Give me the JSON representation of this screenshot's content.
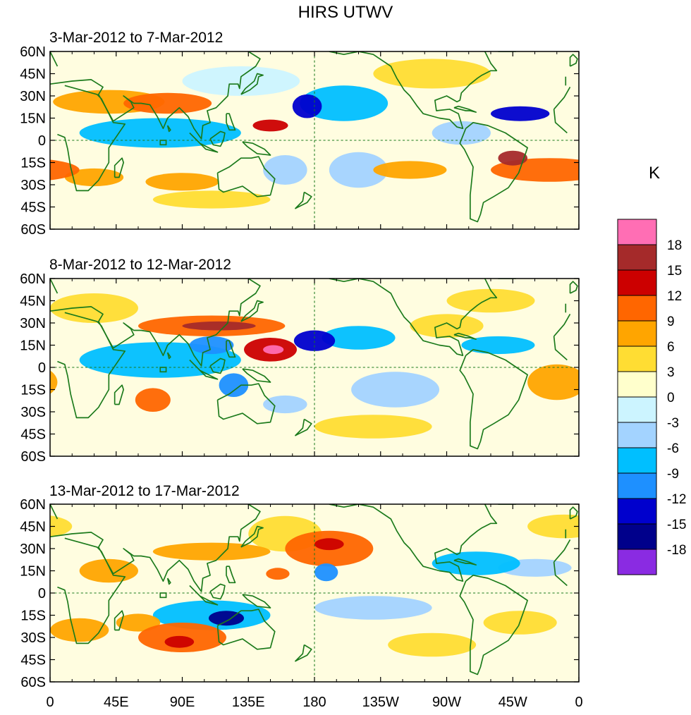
{
  "title": "HIRS UTWV",
  "unit": "K",
  "lat_labels": [
    "60N",
    "45N",
    "30N",
    "15N",
    "0",
    "15S",
    "30S",
    "45S",
    "60S"
  ],
  "lon_labels": [
    "0",
    "45E",
    "90E",
    "135E",
    "180",
    "135W",
    "90W",
    "45W",
    "0"
  ],
  "panels": [
    {
      "id": "p1",
      "label": "3-Mar-2012 to 7-Mar-2012",
      "blobs": [
        {
          "lon": 40,
          "lat": 26,
          "rlon": 38,
          "rlat": 8,
          "level": 5
        },
        {
          "lon": 80,
          "lat": 25,
          "rlon": 30,
          "rlat": 7,
          "level": 6
        },
        {
          "lon": 75,
          "lat": 5,
          "rlon": 55,
          "rlat": 10,
          "level": -5
        },
        {
          "lon": 150,
          "lat": 10,
          "rlon": 12,
          "rlat": 4,
          "level": 8
        },
        {
          "lon": 175,
          "lat": 23,
          "rlon": 10,
          "rlat": 8,
          "level": -7
        },
        {
          "lon": 200,
          "lat": 25,
          "rlon": 30,
          "rlat": 12,
          "level": -5
        },
        {
          "lon": 320,
          "lat": 18,
          "rlon": 20,
          "rlat": 5,
          "level": -7
        },
        {
          "lon": 340,
          "lat": -20,
          "rlon": 40,
          "rlat": 8,
          "level": 6
        },
        {
          "lon": 315,
          "lat": -12,
          "rlon": 10,
          "rlat": 5,
          "level": 9
        },
        {
          "lon": 30,
          "lat": -25,
          "rlon": 20,
          "rlat": 6,
          "level": 5
        },
        {
          "lon": 90,
          "lat": -28,
          "rlon": 25,
          "rlat": 6,
          "level": 4
        },
        {
          "lon": 245,
          "lat": -20,
          "rlon": 25,
          "rlat": 6,
          "level": 5
        },
        {
          "lon": 160,
          "lat": -20,
          "rlon": 15,
          "rlat": 10,
          "level": -4
        },
        {
          "lon": 210,
          "lat": -20,
          "rlon": 20,
          "rlat": 12,
          "level": -3
        },
        {
          "lon": 130,
          "lat": 40,
          "rlon": 40,
          "rlat": 10,
          "level": -2
        },
        {
          "lon": 260,
          "lat": 45,
          "rlon": 40,
          "rlat": 10,
          "level": 2
        },
        {
          "lon": 280,
          "lat": 5,
          "rlon": 20,
          "rlat": 8,
          "level": -3
        },
        {
          "lon": 110,
          "lat": -40,
          "rlon": 40,
          "rlat": 6,
          "level": 2
        }
      ]
    },
    {
      "id": "p2",
      "label": "8-Mar-2012 to 12-Mar-2012",
      "blobs": [
        {
          "lon": 110,
          "lat": 28,
          "rlon": 50,
          "rlat": 7,
          "level": 7
        },
        {
          "lon": 115,
          "lat": 28,
          "rlon": 25,
          "rlat": 3,
          "level": 10
        },
        {
          "lon": 150,
          "lat": 12,
          "rlon": 18,
          "rlat": 8,
          "level": 8
        },
        {
          "lon": 152,
          "lat": 12,
          "rlon": 7,
          "rlat": 3,
          "level": 11
        },
        {
          "lon": 75,
          "lat": 5,
          "rlon": 55,
          "rlat": 12,
          "level": -5
        },
        {
          "lon": 110,
          "lat": 15,
          "rlon": 15,
          "rlat": 6,
          "level": -6
        },
        {
          "lon": 180,
          "lat": 18,
          "rlon": 14,
          "rlat": 7,
          "level": -7
        },
        {
          "lon": 210,
          "lat": 20,
          "rlon": 25,
          "rlat": 8,
          "level": -5
        },
        {
          "lon": 305,
          "lat": 15,
          "rlon": 25,
          "rlat": 6,
          "level": -5
        },
        {
          "lon": 70,
          "lat": -22,
          "rlon": 12,
          "rlat": 8,
          "level": 6
        },
        {
          "lon": 125,
          "lat": -12,
          "rlon": 10,
          "rlat": 8,
          "level": -6
        },
        {
          "lon": 160,
          "lat": -25,
          "rlon": 15,
          "rlat": 6,
          "level": -4
        },
        {
          "lon": 345,
          "lat": -10,
          "rlon": 20,
          "rlat": 12,
          "level": 4
        },
        {
          "lon": 270,
          "lat": 28,
          "rlon": 25,
          "rlat": 8,
          "level": 3
        },
        {
          "lon": 300,
          "lat": 45,
          "rlon": 30,
          "rlat": 8,
          "level": 3
        },
        {
          "lon": 235,
          "lat": -15,
          "rlon": 30,
          "rlat": 12,
          "level": -3
        },
        {
          "lon": 220,
          "lat": -40,
          "rlon": 40,
          "rlat": 8,
          "level": 2
        },
        {
          "lon": 30,
          "lat": 40,
          "rlon": 30,
          "rlat": 10,
          "level": 2
        }
      ]
    },
    {
      "id": "p3",
      "label": "13-Mar-2012 to 17-Mar-2012",
      "blobs": [
        {
          "lon": 190,
          "lat": 30,
          "rlon": 30,
          "rlat": 12,
          "level": 6
        },
        {
          "lon": 190,
          "lat": 33,
          "rlon": 10,
          "rlat": 4,
          "level": 8
        },
        {
          "lon": 160,
          "lat": 40,
          "rlon": 25,
          "rlat": 12,
          "level": 3
        },
        {
          "lon": 188,
          "lat": 14,
          "rlon": 8,
          "rlat": 6,
          "level": -6
        },
        {
          "lon": 155,
          "lat": 13,
          "rlon": 8,
          "rlat": 4,
          "level": 7
        },
        {
          "lon": 110,
          "lat": 28,
          "rlon": 40,
          "rlat": 6,
          "level": 5
        },
        {
          "lon": 110,
          "lat": -15,
          "rlon": 40,
          "rlat": 10,
          "level": -5
        },
        {
          "lon": 120,
          "lat": -17,
          "rlon": 12,
          "rlat": 5,
          "level": -8
        },
        {
          "lon": 90,
          "lat": -30,
          "rlon": 30,
          "rlat": 10,
          "level": 6
        },
        {
          "lon": 88,
          "lat": -33,
          "rlon": 10,
          "rlat": 4,
          "level": 8
        },
        {
          "lon": 60,
          "lat": -20,
          "rlon": 15,
          "rlat": 6,
          "level": 5
        },
        {
          "lon": 20,
          "lat": -25,
          "rlon": 20,
          "rlat": 8,
          "level": 5
        },
        {
          "lon": 290,
          "lat": 20,
          "rlon": 30,
          "rlat": 8,
          "level": -5
        },
        {
          "lon": 330,
          "lat": 17,
          "rlon": 25,
          "rlat": 6,
          "level": -4
        },
        {
          "lon": 220,
          "lat": -10,
          "rlon": 40,
          "rlat": 8,
          "level": -3
        },
        {
          "lon": 260,
          "lat": -35,
          "rlon": 30,
          "rlat": 8,
          "level": 3
        },
        {
          "lon": 320,
          "lat": -20,
          "rlon": 25,
          "rlat": 8,
          "level": 3
        },
        {
          "lon": 40,
          "lat": 15,
          "rlon": 20,
          "rlat": 8,
          "level": 4
        },
        {
          "lon": 350,
          "lat": 45,
          "rlon": 25,
          "rlat": 8,
          "level": 3
        }
      ]
    }
  ],
  "colorbar": {
    "labels": [
      "18",
      "15",
      "12",
      "9",
      "6",
      "3",
      "0",
      "-3",
      "-6",
      "-9",
      "-12",
      "-15",
      "-18"
    ],
    "colors": [
      "#ff6eb4",
      "#a52a2a",
      "#cc0000",
      "#ff6600",
      "#ffa500",
      "#ffdd33",
      "#ffffcc",
      "#ccf4ff",
      "#a3d3ff",
      "#00bfff",
      "#1e90ff",
      "#0000cd",
      "#00008b",
      "#8a2be2"
    ]
  },
  "styles": {
    "coast_color": "#1b7a1b",
    "grid_color": "#1b7a1b",
    "background_field": "#fffde0"
  }
}
